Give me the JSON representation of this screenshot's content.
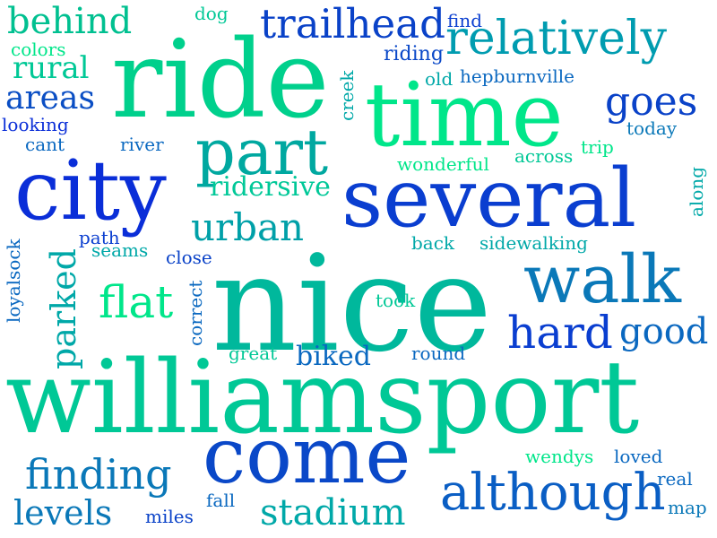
{
  "wordcloud": {
    "background": "#ffffff",
    "palette": [
      "#00e68a",
      "#00c896",
      "#00a8a8",
      "#0088b8",
      "#0060c8",
      "#0a2ed8"
    ],
    "words": [
      {
        "text": "williamsport",
        "color": "#00c896"
      },
      {
        "text": "nice",
        "color": "#00b89c"
      },
      {
        "text": "ride",
        "color": "#00d08c"
      },
      {
        "text": "several",
        "color": "#0a3ed0"
      },
      {
        "text": "city",
        "color": "#0a2ed8"
      },
      {
        "text": "time",
        "color": "#00e68a"
      },
      {
        "text": "come",
        "color": "#0a48c8"
      },
      {
        "text": "walk",
        "color": "#0a78b8"
      },
      {
        "text": "part",
        "color": "#00a8a0"
      },
      {
        "text": "although",
        "color": "#0a5ec4"
      },
      {
        "text": "relatively",
        "color": "#009cb0"
      },
      {
        "text": "trailhead",
        "color": "#0a42c8"
      },
      {
        "text": "finding",
        "color": "#0a78b8"
      },
      {
        "text": "hard",
        "color": "#0a3ed0"
      },
      {
        "text": "behind",
        "color": "#00c090"
      },
      {
        "text": "flat",
        "color": "#00e68a"
      },
      {
        "text": "stadium",
        "color": "#00a8a8"
      },
      {
        "text": "good",
        "color": "#0a68c0"
      },
      {
        "text": "urban",
        "color": "#00a0a8"
      },
      {
        "text": "parked",
        "color": "#00a8a8"
      },
      {
        "text": "levels",
        "color": "#0a78b8"
      },
      {
        "text": "goes",
        "color": "#0a42c8"
      },
      {
        "text": "areas",
        "color": "#0a4ec4"
      },
      {
        "text": "rural",
        "color": "#00c896"
      },
      {
        "text": "ridersive",
        "color": "#00c898"
      },
      {
        "text": "biked",
        "color": "#0a68c0"
      },
      {
        "text": "hepburnville",
        "color": "#0a68c0"
      },
      {
        "text": "riding",
        "color": "#0a48c8"
      },
      {
        "text": "find",
        "color": "#0a3ed0"
      },
      {
        "text": "colors",
        "color": "#00e68a"
      },
      {
        "text": "dog",
        "color": "#00c896"
      },
      {
        "text": "old",
        "color": "#00a8a8"
      },
      {
        "text": "creek",
        "color": "#00a8a8"
      },
      {
        "text": "looking",
        "color": "#0a2ed8"
      },
      {
        "text": "cant",
        "color": "#0a68c0"
      },
      {
        "text": "river",
        "color": "#0a68c0"
      },
      {
        "text": "today",
        "color": "#0a78b8"
      },
      {
        "text": "trip",
        "color": "#00e68a"
      },
      {
        "text": "across",
        "color": "#00c896"
      },
      {
        "text": "wonderful",
        "color": "#00e68a"
      },
      {
        "text": "along",
        "color": "#00a8a8"
      },
      {
        "text": "path",
        "color": "#0a3ed0"
      },
      {
        "text": "seams",
        "color": "#00a8a8"
      },
      {
        "text": "back",
        "color": "#00a8a8"
      },
      {
        "text": "sidewalking",
        "color": "#00a8a8"
      },
      {
        "text": "close",
        "color": "#0a42c8"
      },
      {
        "text": "loyalsock",
        "color": "#0a68c0"
      },
      {
        "text": "correct",
        "color": "#0a68c0"
      },
      {
        "text": "took",
        "color": "#00c896"
      },
      {
        "text": "great",
        "color": "#00c896"
      },
      {
        "text": "round",
        "color": "#0a68c0"
      },
      {
        "text": "wendys",
        "color": "#00e68a"
      },
      {
        "text": "loved",
        "color": "#0a68c0"
      },
      {
        "text": "real",
        "color": "#0a68c0"
      },
      {
        "text": "map",
        "color": "#0a78b8"
      },
      {
        "text": "fall",
        "color": "#0a68c0"
      },
      {
        "text": "miles",
        "color": "#0a42c8"
      }
    ]
  }
}
